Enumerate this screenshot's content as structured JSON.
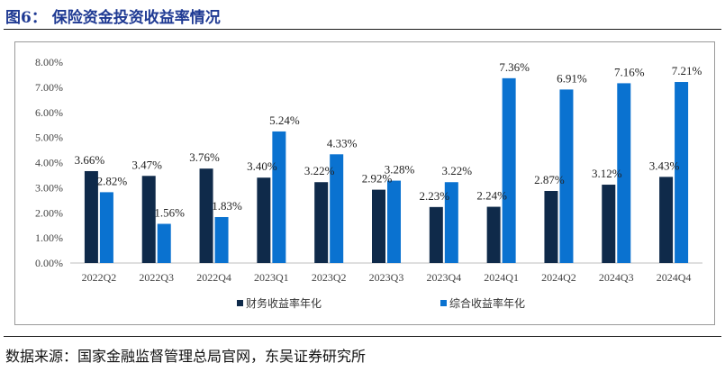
{
  "header": {
    "title": "图6：  保险资金投资收益率情况"
  },
  "footer": {
    "source": "数据来源：国家金融监督管理总局官网，东吴证券研究所"
  },
  "chart_data": {
    "type": "bar",
    "title": "",
    "xlabel": "",
    "ylabel": "",
    "ylim": [
      0,
      8
    ],
    "y_ticks": [
      "0.00%",
      "1.00%",
      "2.00%",
      "3.00%",
      "4.00%",
      "5.00%",
      "6.00%",
      "7.00%",
      "8.00%"
    ],
    "grid": false,
    "legend_position": "bottom-center",
    "categories": [
      "2022Q2",
      "2022Q3",
      "2022Q4",
      "2023Q1",
      "2023Q2",
      "2023Q3",
      "2023Q4",
      "2024Q1",
      "2024Q2",
      "2024Q3",
      "2024Q4"
    ],
    "series": [
      {
        "name": "财务收益率年化",
        "color": "#0f2a4a",
        "values": [
          3.66,
          3.47,
          3.76,
          3.4,
          3.22,
          2.92,
          2.23,
          2.24,
          2.87,
          3.12,
          3.43
        ],
        "labels": [
          "3.66%",
          "3.47%",
          "3.76%",
          "3.40%",
          "3.22%",
          "2.92%",
          "2.23%",
          "2.24%",
          "2.87%",
          "3.12%",
          "3.43%"
        ]
      },
      {
        "name": "综合收益率年化",
        "color": "#0a72d0",
        "values": [
          2.82,
          1.56,
          1.83,
          5.24,
          4.33,
          3.28,
          3.22,
          7.36,
          6.91,
          7.16,
          7.21
        ],
        "labels": [
          "2.82%",
          "1.56%",
          "1.83%",
          "5.24%",
          "4.33%",
          "3.28%",
          "3.22%",
          "7.36%",
          "6.91%",
          "7.16%",
          "7.21%"
        ]
      }
    ]
  }
}
